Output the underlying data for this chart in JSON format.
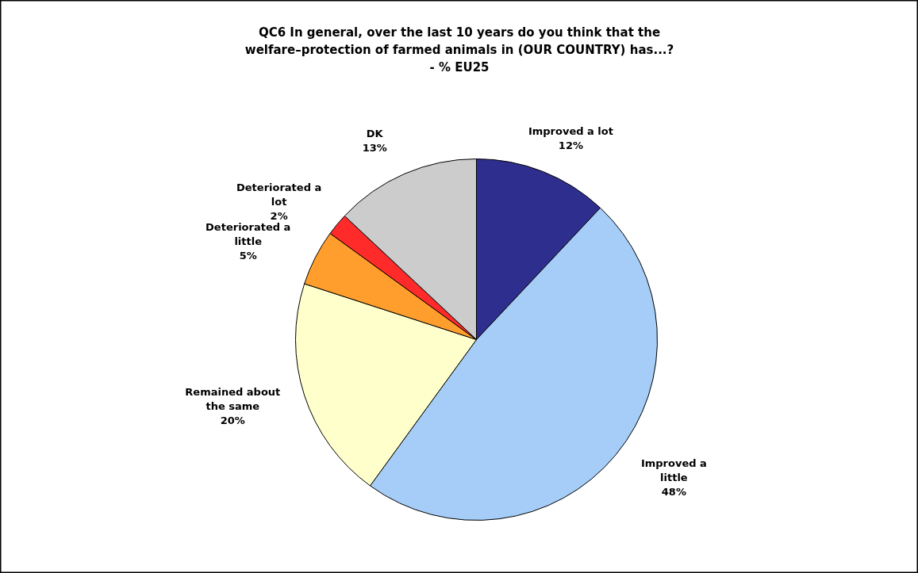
{
  "chart_data": {
    "type": "pie",
    "title": "QC6 In general, over the last 10 years do you think that the\nwelfare–protection of farmed animals in (OUR COUNTRY) has...?\n- % EU25",
    "categories": [
      "Improved a lot",
      "Improved a little",
      "Remained about the same",
      "Deteriorated a little",
      "Deteriorated a lot",
      "DK"
    ],
    "values": [
      12,
      48,
      20,
      5,
      2,
      13
    ],
    "colors": [
      "#2e2e8e",
      "#a6cdf7",
      "#ffffcc",
      "#ff9e2c",
      "#ff2a2a",
      "#cccccc"
    ],
    "value_labels": [
      "12%",
      "48%",
      "20%",
      "5%",
      "2%",
      "13%"
    ]
  }
}
